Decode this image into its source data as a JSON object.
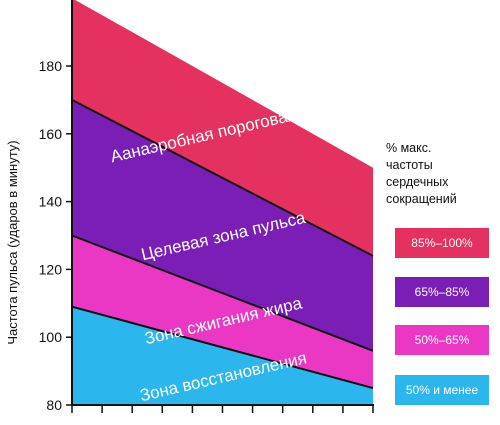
{
  "chart_data": {
    "type": "area",
    "title": "",
    "ylabel": "Частота пульса (ударов в минуту)",
    "xlabel": "",
    "ylim": [
      80,
      200
    ],
    "yticks": [
      80,
      100,
      120,
      140,
      160,
      180
    ],
    "x_ticks_count": 10,
    "series": [
      {
        "name": "Зона восстановления",
        "color": "#2bb6ee",
        "from": [
          80,
          80
        ],
        "to": [
          109,
          85
        ]
      },
      {
        "name": "Зона сжигания жира",
        "color": "#ea38c4",
        "from": [
          109,
          85
        ],
        "to": [
          130,
          96
        ]
      },
      {
        "name": "Целевая зона пульса",
        "color": "#7a1eb6",
        "from": [
          130,
          96
        ],
        "to": [
          170,
          124
        ]
      },
      {
        "name": "Аанаэробная пороговая зона",
        "color": "#e43160",
        "from": [
          170,
          124
        ],
        "to": [
          200,
          150
        ]
      }
    ]
  },
  "legend": {
    "title": "% макс.\nчастоты\nсердечных\nсокращений",
    "items": [
      {
        "label": "85%–100%",
        "color": "#e43160"
      },
      {
        "label": "65%–85%",
        "color": "#7a1eb6"
      },
      {
        "label": "50%–65%",
        "color": "#ea38c4"
      },
      {
        "label": "50% и менее",
        "color": "#2bb6ee"
      }
    ]
  }
}
